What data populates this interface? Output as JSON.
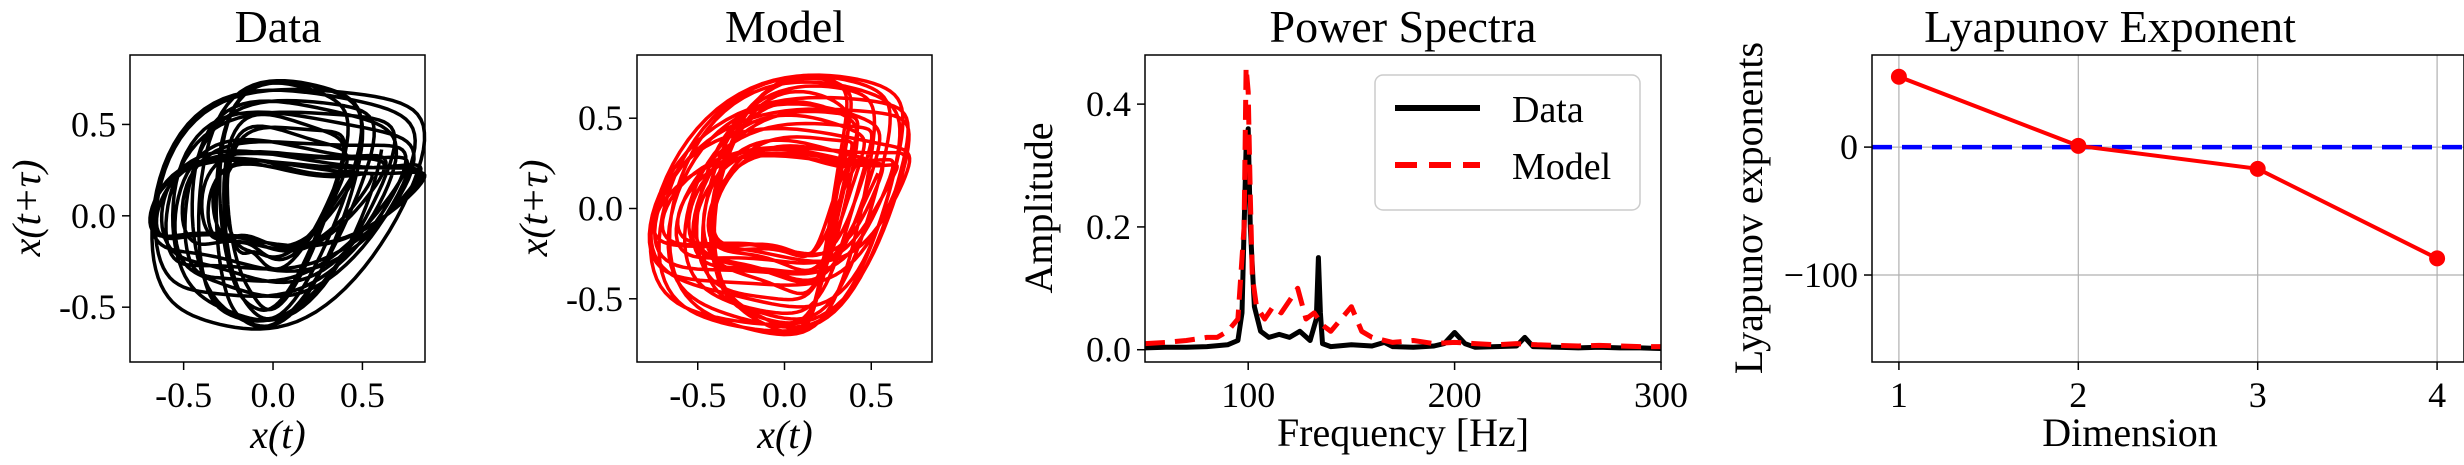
{
  "chart_data": [
    {
      "type": "line",
      "title": "Data",
      "xlabel": "x(t)",
      "ylabel": "x(t+τ)",
      "xlim": [
        -0.8,
        0.85
      ],
      "ylim": [
        -0.8,
        0.88
      ],
      "xticks": [
        -0.5,
        0.0,
        0.5
      ],
      "xticklabels": [
        "-0.5",
        "0.0",
        "0.5"
      ],
      "yticks": [
        -0.5,
        0.0,
        0.5
      ],
      "yticklabels": [
        "-0.5",
        "0.0",
        "0.5"
      ],
      "grid": false,
      "color": "#000000",
      "trajectory": {
        "loops": 22,
        "center": [
          0.03,
          0.06
        ],
        "radius_x": [
          0.3,
          0.76
        ],
        "radius_y": [
          0.22,
          0.72
        ]
      }
    },
    {
      "type": "line",
      "title": "Model",
      "xlabel": "x(t)",
      "ylabel": "x(t+τ)",
      "xlim": [
        -0.85,
        0.85
      ],
      "ylim": [
        -0.85,
        0.85
      ],
      "xticks": [
        -0.5,
        0.0,
        0.5
      ],
      "xticklabels": [
        "-0.5",
        "0.0",
        "0.5"
      ],
      "yticks": [
        -0.5,
        0.0,
        0.5
      ],
      "yticklabels": [
        "-0.5",
        "0.0",
        "0.5"
      ],
      "grid": false,
      "color": "#ff0000",
      "trajectory": {
        "loops": 24,
        "center": [
          0.02,
          0.02
        ],
        "radius_x": [
          0.36,
          0.74
        ],
        "radius_y": [
          0.28,
          0.76
        ]
      }
    },
    {
      "type": "line",
      "title": "Power Spectra",
      "xlabel": "Frequency [Hz]",
      "ylabel": "Amplitude",
      "xlim": [
        50,
        300
      ],
      "ylim": [
        -0.02,
        0.48
      ],
      "xticks": [
        100,
        200,
        300
      ],
      "xticklabels": [
        "100",
        "200",
        "300"
      ],
      "yticks": [
        0.0,
        0.2,
        0.4
      ],
      "yticklabels": [
        "0.0",
        "0.2",
        "0.4"
      ],
      "grid": false,
      "legend": {
        "placement": "upper right",
        "entries": [
          "Data",
          "Model"
        ]
      },
      "series": [
        {
          "name": "Data",
          "color": "#000000",
          "style": "solid",
          "x": [
            50,
            60,
            70,
            80,
            90,
            95,
            97,
            99,
            100,
            101,
            103,
            106,
            110,
            115,
            120,
            125,
            130,
            133,
            134,
            135,
            136,
            140,
            150,
            160,
            166,
            170,
            180,
            190,
            195,
            200,
            205,
            210,
            220,
            230,
            234,
            238,
            250,
            260,
            270,
            280,
            290,
            300
          ],
          "y": [
            0.003,
            0.004,
            0.004,
            0.005,
            0.008,
            0.015,
            0.06,
            0.33,
            0.36,
            0.2,
            0.07,
            0.03,
            0.02,
            0.025,
            0.02,
            0.03,
            0.015,
            0.05,
            0.15,
            0.06,
            0.01,
            0.005,
            0.008,
            0.006,
            0.012,
            0.005,
            0.004,
            0.006,
            0.01,
            0.028,
            0.01,
            0.004,
            0.005,
            0.006,
            0.02,
            0.005,
            0.004,
            0.003,
            0.004,
            0.003,
            0.003,
            0.002
          ]
        },
        {
          "name": "Model",
          "color": "#ff0000",
          "style": "dashed",
          "x": [
            50,
            60,
            70,
            80,
            85,
            90,
            95,
            98,
            99,
            100,
            101,
            102,
            104,
            108,
            112,
            116,
            120,
            124,
            128,
            132,
            136,
            140,
            145,
            150,
            155,
            160,
            170,
            180,
            190,
            200,
            210,
            220,
            230,
            240,
            250,
            260,
            270,
            280,
            290,
            300
          ],
          "y": [
            0.01,
            0.012,
            0.015,
            0.02,
            0.02,
            0.03,
            0.05,
            0.2,
            0.46,
            0.42,
            0.25,
            0.12,
            0.07,
            0.05,
            0.07,
            0.06,
            0.08,
            0.1,
            0.05,
            0.06,
            0.04,
            0.03,
            0.05,
            0.07,
            0.03,
            0.02,
            0.012,
            0.015,
            0.01,
            0.012,
            0.01,
            0.008,
            0.01,
            0.008,
            0.007,
            0.006,
            0.007,
            0.006,
            0.005,
            0.005
          ]
        }
      ]
    },
    {
      "type": "line",
      "title": "Lyapunov Exponent",
      "xlabel": "Dimension",
      "ylabel": "Lyapunov exponents",
      "xlim": [
        0.85,
        4.15
      ],
      "ylim": [
        -168,
        72
      ],
      "xticks": [
        1,
        2,
        3,
        4
      ],
      "xticklabels": [
        "1",
        "2",
        "3",
        "4"
      ],
      "yticks": [
        -100,
        0
      ],
      "yticklabels": [
        "−100",
        "0"
      ],
      "grid": true,
      "reference_line": {
        "y": 0,
        "color": "#0000ff",
        "style": "dashed"
      },
      "series": [
        {
          "color": "#ff0000",
          "style": "solid",
          "markers": true,
          "x": [
            1,
            2,
            3,
            4
          ],
          "y": [
            55,
            1,
            -17,
            -87
          ]
        }
      ]
    }
  ]
}
